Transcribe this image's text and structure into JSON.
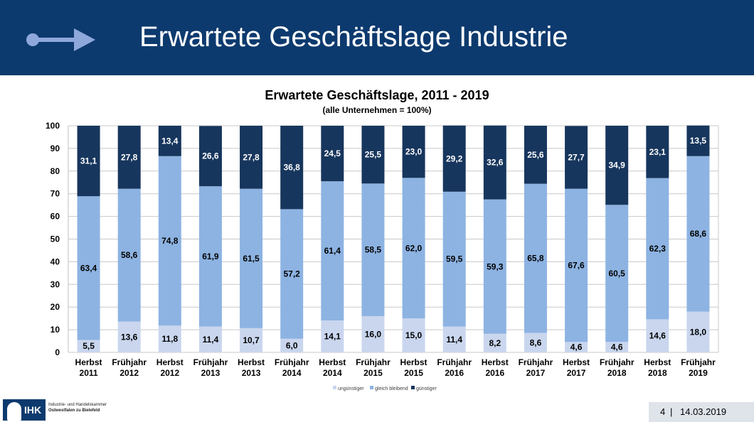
{
  "slide": {
    "title": "Erwartete Geschäftslage Industrie",
    "page_number": "4",
    "separator": "|",
    "date": "14.03.2019",
    "logo": {
      "brand": "IHK",
      "line1": "Industrie- und Handelskammer",
      "line2": "Ostwestfalen zu Bielefeld"
    }
  },
  "colors": {
    "header_bg": "#0d3a6e",
    "arrow": "#8fa8dc",
    "ungunstiger": "#c9d6ee",
    "gleich_bleibend": "#8db3e2",
    "gunstiger": "#17365d"
  },
  "chart_data": {
    "type": "bar",
    "stacked": true,
    "title": "Erwartete Geschäftslage, 2011 - 2019",
    "subtitle": "(alle Unternehmen = 100%)",
    "categories": [
      [
        "Herbst",
        "2011"
      ],
      [
        "Frühjahr",
        "2012"
      ],
      [
        "Herbst",
        "2012"
      ],
      [
        "Frühjahr",
        "2013"
      ],
      [
        "Herbst",
        "2013"
      ],
      [
        "Frühjahr",
        "2014"
      ],
      [
        "Herbst",
        "2014"
      ],
      [
        "Frühjahr",
        "2015"
      ],
      [
        "Herbst",
        "2015"
      ],
      [
        "Frühjahr",
        "2016"
      ],
      [
        "Herbst",
        "2016"
      ],
      [
        "Frühjahr",
        "2017"
      ],
      [
        "Herbst",
        "2017"
      ],
      [
        "Frühjahr",
        "2018"
      ],
      [
        "Herbst",
        "2018"
      ],
      [
        "Frühjahr",
        "2019"
      ]
    ],
    "series": [
      {
        "name": "ungünstiger",
        "color": "#c9d6ee",
        "values": [
          5.5,
          13.6,
          11.8,
          11.4,
          10.7,
          6.0,
          14.1,
          16.0,
          15.0,
          11.4,
          8.2,
          8.6,
          4.6,
          4.6,
          14.6,
          18.0
        ],
        "labels": [
          "5,5",
          "13,6",
          "11,8",
          "11,4",
          "10,7",
          "6,0",
          "14,1",
          "16,0",
          "15,0",
          "11,4",
          "8,2",
          "8,6",
          "4,6",
          "4,6",
          "14,6",
          "18,0"
        ]
      },
      {
        "name": "gleich bleibend",
        "color": "#8db3e2",
        "values": [
          63.4,
          58.6,
          74.8,
          61.9,
          61.5,
          57.2,
          61.4,
          58.5,
          62.0,
          59.5,
          59.3,
          65.8,
          67.6,
          60.5,
          62.3,
          68.6
        ],
        "labels": [
          "63,4",
          "58,6",
          "74,8",
          "61,9",
          "61,5",
          "57,2",
          "61,4",
          "58,5",
          "62,0",
          "59,5",
          "59,3",
          "65,8",
          "67,6",
          "60,5",
          "62,3",
          "68,6"
        ]
      },
      {
        "name": "günstiger",
        "color": "#17365d",
        "values": [
          31.1,
          27.8,
          13.4,
          26.6,
          27.8,
          36.8,
          24.5,
          25.5,
          23.0,
          29.2,
          32.6,
          25.6,
          27.7,
          34.9,
          23.1,
          13.5
        ],
        "labels": [
          "31,1",
          "27,8",
          "13,4",
          "26,6",
          "27,8",
          "36,8",
          "24,5",
          "25,5",
          "23,0",
          "29,2",
          "32,6",
          "25,6",
          "27,7",
          "34,9",
          "23,1",
          "13,5"
        ]
      }
    ],
    "ylim": [
      0,
      100
    ],
    "yticks": [
      "0",
      "10",
      "20",
      "30",
      "40",
      "50",
      "60",
      "70",
      "80",
      "90",
      "100"
    ],
    "grid": true,
    "legend_position": "bottom"
  }
}
